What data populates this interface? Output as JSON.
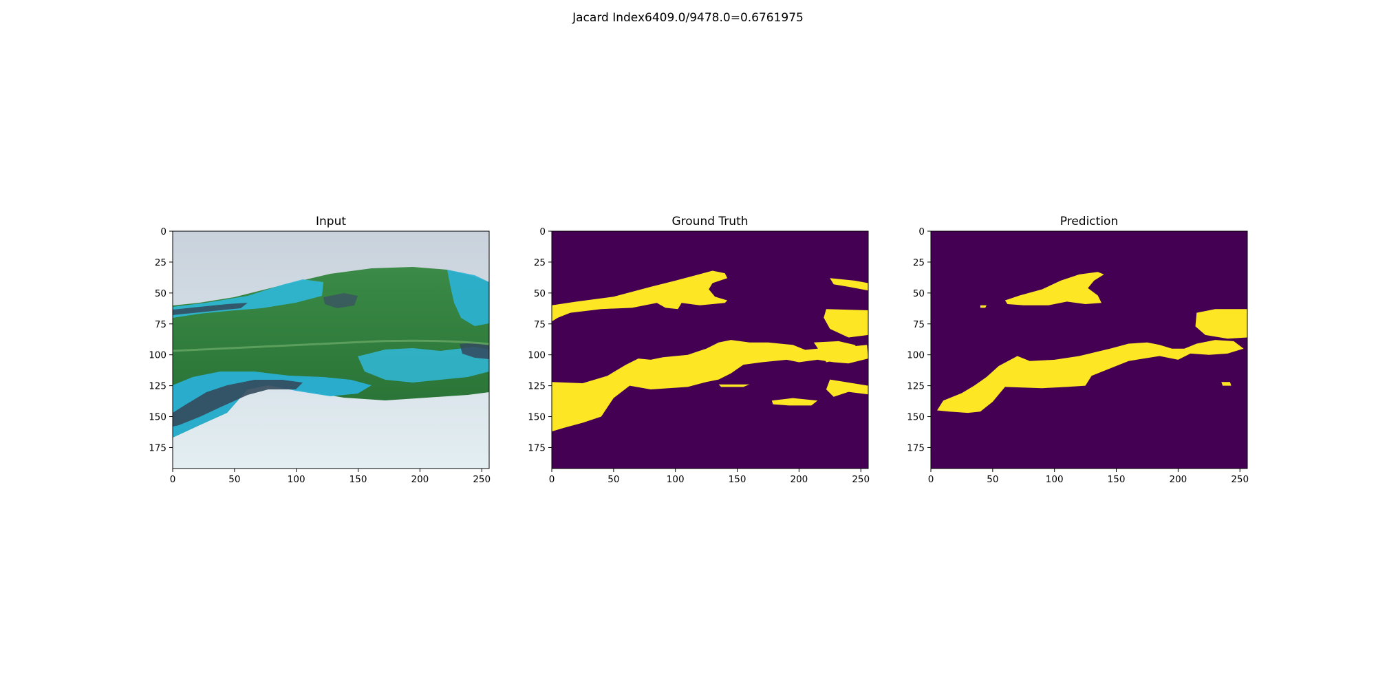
{
  "figure": {
    "suptitle": "Jacard Index6409.0/9478.0=0.6761975"
  },
  "colors": {
    "mask_background": "#440154",
    "mask_foreground": "#fde725",
    "leaf": "#2e7d3a",
    "lesion": "#29b6d8",
    "lesion_dark": "#34495e",
    "image_background": "#dde8ec"
  },
  "chart_data": [
    {
      "type": "image",
      "title": "Input",
      "xlim": [
        0,
        256
      ],
      "ylim": [
        192,
        0
      ],
      "x_ticks": [
        0,
        50,
        100,
        150,
        200,
        250
      ],
      "y_ticks": [
        0,
        25,
        50,
        75,
        100,
        125,
        150,
        175
      ],
      "content": "rgb-leaf-photo"
    },
    {
      "type": "heatmap",
      "title": "Ground Truth",
      "xlim": [
        0,
        256
      ],
      "ylim": [
        192,
        0
      ],
      "x_ticks": [
        0,
        50,
        100,
        150,
        200,
        250
      ],
      "y_ticks": [
        0,
        25,
        50,
        75,
        100,
        125,
        150,
        175
      ],
      "regions": [
        [
          [
            0,
            60
          ],
          [
            20,
            57
          ],
          [
            50,
            53
          ],
          [
            80,
            45
          ],
          [
            100,
            40
          ],
          [
            115,
            36
          ],
          [
            130,
            32
          ],
          [
            140,
            34
          ],
          [
            142,
            38
          ],
          [
            130,
            42
          ],
          [
            127,
            47
          ],
          [
            132,
            53
          ],
          [
            142,
            56
          ],
          [
            140,
            58
          ],
          [
            120,
            60
          ],
          [
            105,
            58
          ],
          [
            102,
            63
          ],
          [
            92,
            62
          ],
          [
            85,
            58
          ],
          [
            65,
            62
          ],
          [
            40,
            63
          ],
          [
            15,
            66
          ],
          [
            5,
            70
          ],
          [
            0,
            73
          ]
        ],
        [
          [
            0,
            122
          ],
          [
            25,
            123
          ],
          [
            45,
            117
          ],
          [
            60,
            108
          ],
          [
            70,
            103
          ],
          [
            80,
            104
          ],
          [
            90,
            102
          ],
          [
            110,
            100
          ],
          [
            125,
            95
          ],
          [
            135,
            90
          ],
          [
            145,
            88
          ],
          [
            160,
            90
          ],
          [
            175,
            90
          ],
          [
            195,
            92
          ],
          [
            205,
            96
          ],
          [
            215,
            95
          ],
          [
            230,
            90
          ],
          [
            245,
            93
          ],
          [
            255,
            92
          ],
          [
            256,
            103
          ],
          [
            240,
            107
          ],
          [
            228,
            106
          ],
          [
            215,
            104
          ],
          [
            200,
            106
          ],
          [
            190,
            104
          ],
          [
            170,
            106
          ],
          [
            155,
            108
          ],
          [
            145,
            115
          ],
          [
            135,
            120
          ],
          [
            125,
            122
          ],
          [
            110,
            126
          ],
          [
            80,
            128
          ],
          [
            63,
            125
          ],
          [
            50,
            135
          ],
          [
            40,
            150
          ],
          [
            25,
            155
          ],
          [
            10,
            159
          ],
          [
            0,
            162
          ]
        ],
        [
          [
            135,
            124
          ],
          [
            160,
            124
          ],
          [
            155,
            126
          ],
          [
            137,
            126
          ]
        ],
        [
          [
            178,
            137
          ],
          [
            195,
            135
          ],
          [
            215,
            137
          ],
          [
            210,
            141
          ],
          [
            192,
            141
          ],
          [
            179,
            140
          ]
        ],
        [
          [
            225,
            120
          ],
          [
            256,
            125
          ],
          [
            256,
            132
          ],
          [
            240,
            130
          ],
          [
            228,
            134
          ],
          [
            222,
            128
          ]
        ],
        [
          [
            222,
            63
          ],
          [
            256,
            64
          ],
          [
            256,
            84
          ],
          [
            240,
            86
          ],
          [
            225,
            79
          ],
          [
            220,
            70
          ]
        ],
        [
          [
            212,
            90
          ],
          [
            232,
            89
          ],
          [
            245,
            92
          ],
          [
            250,
            97
          ],
          [
            238,
            103
          ],
          [
            222,
            106
          ],
          [
            218,
            99
          ]
        ],
        [
          [
            225,
            38
          ],
          [
            245,
            40
          ],
          [
            256,
            42
          ],
          [
            256,
            48
          ],
          [
            240,
            45
          ],
          [
            228,
            43
          ]
        ]
      ]
    },
    {
      "type": "heatmap",
      "title": "Prediction",
      "xlim": [
        0,
        256
      ],
      "ylim": [
        192,
        0
      ],
      "x_ticks": [
        0,
        50,
        100,
        150,
        200,
        250
      ],
      "y_ticks": [
        0,
        25,
        50,
        75,
        100,
        125,
        150,
        175
      ],
      "regions": [
        [
          [
            60,
            56
          ],
          [
            72,
            52
          ],
          [
            90,
            47
          ],
          [
            105,
            40
          ],
          [
            120,
            35
          ],
          [
            135,
            33
          ],
          [
            140,
            35
          ],
          [
            132,
            40
          ],
          [
            127,
            46
          ],
          [
            135,
            52
          ],
          [
            138,
            58
          ],
          [
            125,
            59
          ],
          [
            110,
            57
          ],
          [
            95,
            60
          ],
          [
            75,
            60
          ],
          [
            62,
            59
          ]
        ],
        [
          [
            40,
            60
          ],
          [
            45,
            60
          ],
          [
            44,
            62
          ],
          [
            40,
            62
          ]
        ],
        [
          [
            5,
            145
          ],
          [
            10,
            137
          ],
          [
            25,
            131
          ],
          [
            35,
            125
          ],
          [
            45,
            118
          ],
          [
            55,
            109
          ],
          [
            70,
            101
          ],
          [
            80,
            105
          ],
          [
            100,
            104
          ],
          [
            120,
            101
          ],
          [
            145,
            95
          ],
          [
            160,
            91
          ],
          [
            175,
            90
          ],
          [
            185,
            92
          ],
          [
            195,
            95
          ],
          [
            205,
            95
          ],
          [
            215,
            91
          ],
          [
            230,
            88
          ],
          [
            245,
            89
          ],
          [
            253,
            95
          ],
          [
            240,
            99
          ],
          [
            225,
            100
          ],
          [
            210,
            99
          ],
          [
            200,
            104
          ],
          [
            185,
            101
          ],
          [
            160,
            105
          ],
          [
            145,
            111
          ],
          [
            130,
            117
          ],
          [
            125,
            125
          ],
          [
            110,
            126
          ],
          [
            90,
            127
          ],
          [
            60,
            126
          ],
          [
            50,
            138
          ],
          [
            40,
            146
          ],
          [
            30,
            147
          ],
          [
            15,
            146
          ]
        ],
        [
          [
            215,
            66
          ],
          [
            230,
            63
          ],
          [
            256,
            63
          ],
          [
            256,
            86
          ],
          [
            240,
            87
          ],
          [
            222,
            84
          ],
          [
            214,
            77
          ]
        ],
        [
          [
            235,
            122
          ],
          [
            242,
            122
          ],
          [
            243,
            125
          ],
          [
            236,
            125
          ]
        ]
      ]
    }
  ]
}
